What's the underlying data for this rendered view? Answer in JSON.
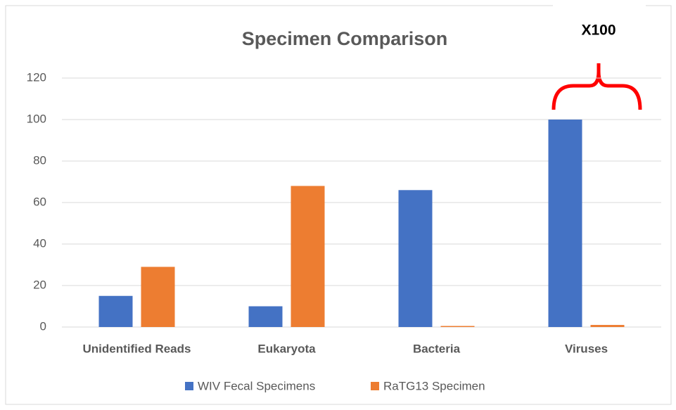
{
  "chart_data": {
    "type": "bar",
    "title": "Specimen Comparison",
    "annotation": "X100",
    "categories": [
      "Unidentified Reads",
      "Eukaryota",
      "Bacteria",
      "Viruses"
    ],
    "series": [
      {
        "name": "WIV Fecal Specimens",
        "color": "#4472c4",
        "values": [
          15,
          10,
          66,
          100
        ]
      },
      {
        "name": "RaTG13 Specimen",
        "color": "#ed7d31",
        "values": [
          29,
          68,
          0.5,
          1
        ]
      }
    ],
    "ylim": [
      0,
      120
    ],
    "yticks": [
      0,
      20,
      40,
      60,
      80,
      100,
      120
    ],
    "grid": true,
    "legend": "bottom"
  }
}
